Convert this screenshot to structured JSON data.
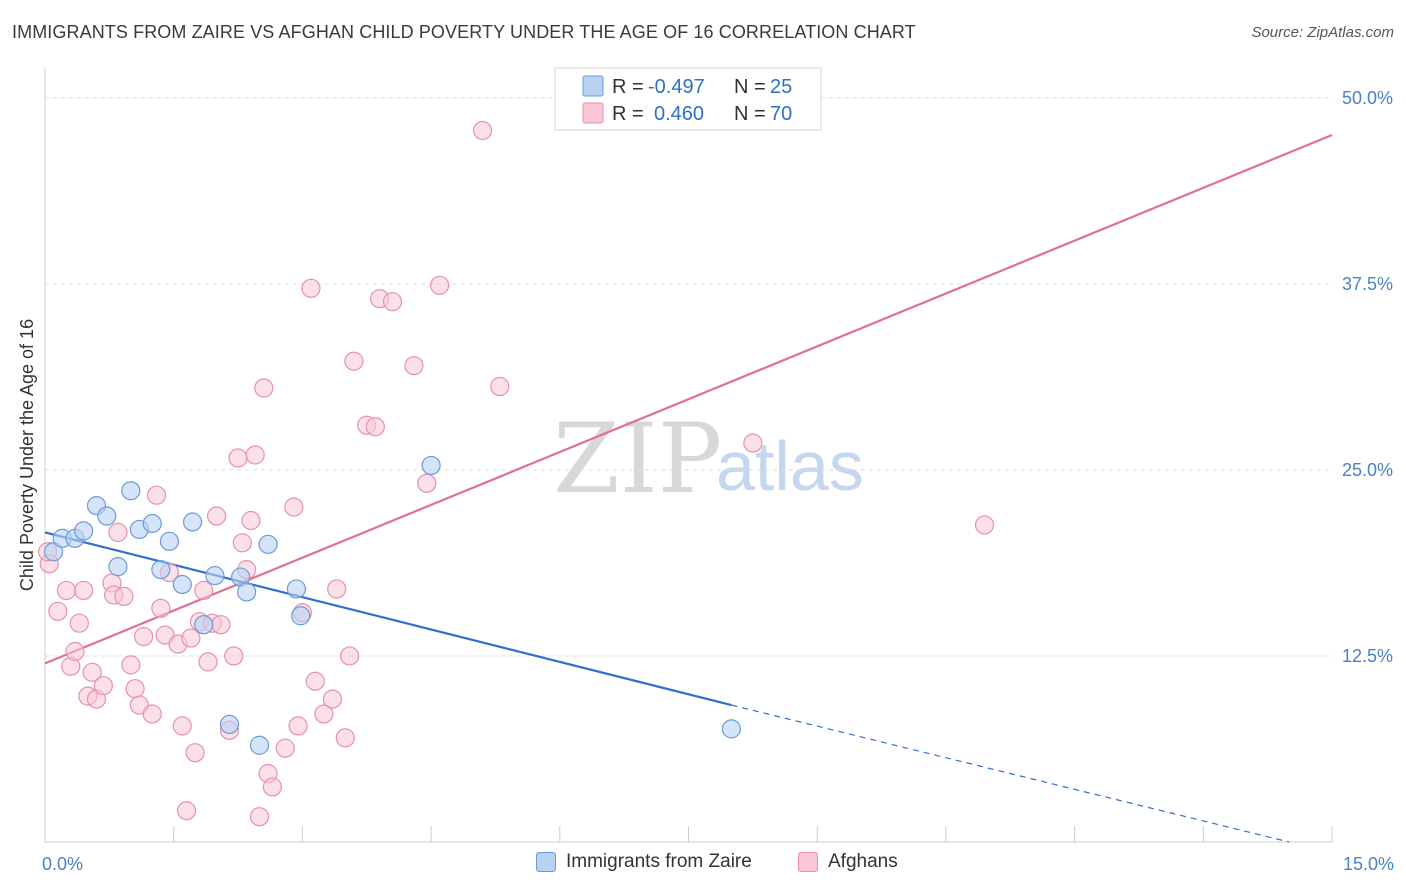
{
  "title": "IMMIGRANTS FROM ZAIRE VS AFGHAN CHILD POVERTY UNDER THE AGE OF 16 CORRELATION CHART",
  "source": "Source: ZipAtlas.com",
  "watermark": {
    "zip": "ZIP",
    "atlas": "atlas"
  },
  "colors": {
    "blue_fill": "#b9d2f3",
    "blue_stroke": "#6a9bd8",
    "blue_line": "#2f6fd0",
    "pink_fill": "#f8c6d6",
    "pink_stroke": "#e890ad",
    "pink_line": "#e0708f",
    "tick_text": "#4a80c8",
    "grid": "#dddddd"
  },
  "legend_top": {
    "rows": [
      {
        "r_label": "R = ",
        "r_value": "-0.497",
        "n_label": "N = ",
        "n_value": "25"
      },
      {
        "r_label": "R = ",
        "r_value": "0.460",
        "n_label": "N = ",
        "n_value": "70"
      }
    ]
  },
  "legend_bottom": {
    "items": [
      {
        "label": "Immigrants from Zaire"
      },
      {
        "label": "Afghans"
      }
    ]
  },
  "chart_data": {
    "type": "scatter",
    "title": "IMMIGRANTS FROM ZAIRE VS AFGHAN CHILD POVERTY UNDER THE AGE OF 16 CORRELATION CHART",
    "xlabel": "",
    "ylabel": "Child Poverty Under the Age of 16",
    "xlim": [
      0,
      15
    ],
    "ylim": [
      0,
      52
    ],
    "x_tick_labels": [
      {
        "value": 0,
        "label": "0.0%"
      },
      {
        "value": 15,
        "label": "15.0%"
      }
    ],
    "y_tick_labels": [
      {
        "value": 12.5,
        "label": "12.5%"
      },
      {
        "value": 25,
        "label": "25.0%"
      },
      {
        "value": 37.5,
        "label": "37.5%"
      },
      {
        "value": 50,
        "label": "50.0%"
      }
    ],
    "y_grid": [
      12.5,
      25,
      37.5,
      50
    ],
    "grid": true,
    "legend_position": "top-center",
    "series": [
      {
        "name": "Immigrants from Zaire",
        "color": "#6a9bd8",
        "points": [
          [
            0.1,
            19.5
          ],
          [
            0.2,
            20.4
          ],
          [
            0.35,
            20.4
          ],
          [
            0.45,
            20.9
          ],
          [
            0.6,
            22.6
          ],
          [
            0.72,
            21.9
          ],
          [
            0.85,
            18.5
          ],
          [
            1.0,
            23.6
          ],
          [
            1.1,
            21.0
          ],
          [
            1.25,
            21.4
          ],
          [
            1.35,
            18.3
          ],
          [
            1.45,
            20.2
          ],
          [
            1.6,
            17.3
          ],
          [
            1.72,
            21.5
          ],
          [
            1.85,
            14.6
          ],
          [
            1.98,
            17.9
          ],
          [
            2.15,
            7.9
          ],
          [
            2.28,
            17.8
          ],
          [
            2.35,
            16.8
          ],
          [
            2.5,
            6.5
          ],
          [
            2.6,
            20.0
          ],
          [
            2.93,
            17.0
          ],
          [
            2.98,
            15.2
          ],
          [
            4.5,
            25.3
          ],
          [
            8.0,
            7.6
          ]
        ],
        "trend": {
          "x0": 0.0,
          "y0": 20.8,
          "x1": 8.0,
          "y1": 9.2,
          "x_dash_end": 14.5,
          "y_dash_end": 0.0
        }
      },
      {
        "name": "Afghans",
        "color": "#e890ad",
        "points": [
          [
            0.05,
            18.7
          ],
          [
            0.15,
            15.5
          ],
          [
            0.25,
            16.9
          ],
          [
            0.3,
            11.8
          ],
          [
            0.35,
            12.8
          ],
          [
            0.4,
            14.7
          ],
          [
            0.45,
            16.9
          ],
          [
            0.5,
            9.8
          ],
          [
            0.55,
            11.4
          ],
          [
            0.6,
            9.6
          ],
          [
            0.68,
            10.5
          ],
          [
            0.78,
            17.4
          ],
          [
            0.8,
            16.6
          ],
          [
            0.85,
            20.8
          ],
          [
            0.92,
            16.5
          ],
          [
            1.0,
            11.9
          ],
          [
            1.05,
            10.3
          ],
          [
            1.1,
            9.2
          ],
          [
            1.15,
            13.8
          ],
          [
            1.25,
            8.6
          ],
          [
            1.3,
            23.3
          ],
          [
            1.35,
            15.7
          ],
          [
            1.4,
            13.9
          ],
          [
            1.45,
            18.1
          ],
          [
            1.55,
            13.3
          ],
          [
            1.6,
            7.8
          ],
          [
            1.65,
            2.1
          ],
          [
            1.7,
            13.7
          ],
          [
            1.75,
            6.0
          ],
          [
            1.8,
            14.8
          ],
          [
            1.85,
            16.9
          ],
          [
            1.9,
            12.1
          ],
          [
            1.95,
            14.7
          ],
          [
            2.0,
            21.9
          ],
          [
            2.05,
            14.6
          ],
          [
            2.15,
            7.5
          ],
          [
            2.2,
            12.5
          ],
          [
            2.25,
            25.8
          ],
          [
            2.3,
            20.1
          ],
          [
            2.35,
            18.3
          ],
          [
            2.4,
            21.6
          ],
          [
            2.45,
            26.0
          ],
          [
            2.5,
            1.7
          ],
          [
            2.55,
            30.5
          ],
          [
            2.6,
            4.6
          ],
          [
            2.65,
            3.7
          ],
          [
            2.8,
            6.3
          ],
          [
            2.9,
            22.5
          ],
          [
            2.95,
            7.8
          ],
          [
            3.0,
            15.4
          ],
          [
            3.1,
            37.2
          ],
          [
            3.15,
            10.8
          ],
          [
            3.25,
            8.6
          ],
          [
            3.35,
            9.6
          ],
          [
            3.4,
            17.0
          ],
          [
            3.5,
            7.0
          ],
          [
            3.55,
            12.5
          ],
          [
            3.6,
            32.3
          ],
          [
            3.75,
            28.0
          ],
          [
            3.85,
            27.9
          ],
          [
            3.9,
            36.5
          ],
          [
            4.05,
            36.3
          ],
          [
            4.3,
            32.0
          ],
          [
            4.45,
            24.1
          ],
          [
            4.6,
            37.4
          ],
          [
            5.1,
            47.8
          ],
          [
            5.3,
            30.6
          ],
          [
            8.25,
            26.8
          ],
          [
            10.95,
            21.3
          ],
          [
            0.03,
            19.5
          ]
        ],
        "trend": {
          "x0": 0.0,
          "y0": 12.0,
          "x1": 15.0,
          "y1": 47.5
        }
      }
    ]
  }
}
